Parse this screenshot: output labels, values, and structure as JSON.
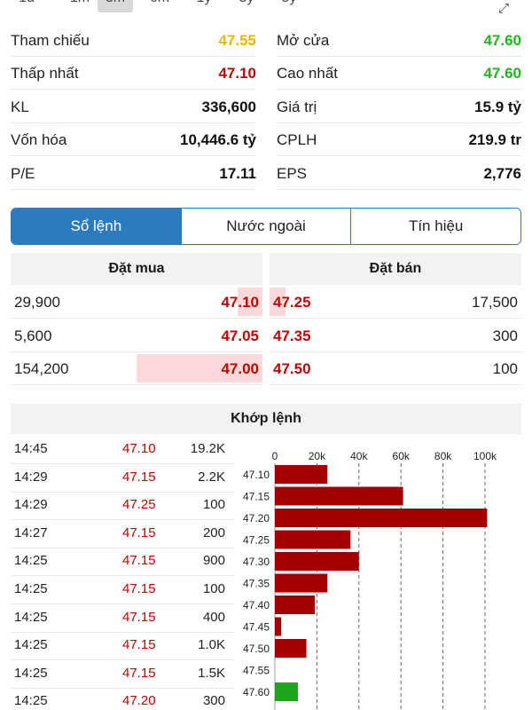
{
  "period_tabs": [
    {
      "label": "1d",
      "active": false
    },
    {
      "label": "1m",
      "active": false
    },
    {
      "label": "3m",
      "active": true
    },
    {
      "label": "6m",
      "active": false
    },
    {
      "label": "1y",
      "active": false
    },
    {
      "label": "3y",
      "active": false
    },
    {
      "label": "5y",
      "active": false
    }
  ],
  "expand_icon": "expand-arrows-icon",
  "stats": {
    "tham_chieu": {
      "label": "Tham chiếu",
      "value": "47.55",
      "color": "#e6b800"
    },
    "mo_cua": {
      "label": "Mở cửa",
      "value": "47.60",
      "color": "#22b322"
    },
    "thap_nhat": {
      "label": "Thấp nhất",
      "value": "47.10",
      "color": "#c40000"
    },
    "cao_nhat": {
      "label": "Cao nhất",
      "value": "47.60",
      "color": "#22b322"
    },
    "kl": {
      "label": "KL",
      "value": "336,600"
    },
    "gia_tri": {
      "label": "Giá trị",
      "value": "15.9 tỷ"
    },
    "von_hoa": {
      "label": "Vốn hóa",
      "value": "10,446.6 tỷ"
    },
    "cplh": {
      "label": "CPLH",
      "value": "219.9 tr"
    },
    "pe": {
      "label": "P/E",
      "value": "17.11"
    },
    "eps": {
      "label": "EPS",
      "value": "2,776"
    }
  },
  "tabs": {
    "so_lenh": "Sổ lệnh",
    "nuoc_ngoai": "Nước ngoài",
    "tin_hieu": "Tín hiệu",
    "active": "so_lenh"
  },
  "order_book": {
    "buy_header": "Đặt mua",
    "sell_header": "Đặt bán",
    "buy": [
      {
        "qty": "29,900",
        "price": "47.10"
      },
      {
        "qty": "5,600",
        "price": "47.05"
      },
      {
        "qty": "154,200",
        "price": "47.00"
      }
    ],
    "sell": [
      {
        "price": "47.25",
        "qty": "17,500"
      },
      {
        "price": "47.35",
        "qty": "300"
      },
      {
        "price": "47.50",
        "qty": "100"
      }
    ]
  },
  "matched": {
    "header": "Khớp lệnh",
    "trades": [
      {
        "time": "14:45",
        "price": "47.10",
        "vol": "19.2K"
      },
      {
        "time": "14:29",
        "price": "47.15",
        "vol": "2.2K"
      },
      {
        "time": "14:29",
        "price": "47.25",
        "vol": "100"
      },
      {
        "time": "14:27",
        "price": "47.15",
        "vol": "200"
      },
      {
        "time": "14:25",
        "price": "47.15",
        "vol": "900"
      },
      {
        "time": "14:25",
        "price": "47.15",
        "vol": "100"
      },
      {
        "time": "14:25",
        "price": "47.15",
        "vol": "400"
      },
      {
        "time": "14:25",
        "price": "47.15",
        "vol": "1.0K"
      },
      {
        "time": "14:25",
        "price": "47.15",
        "vol": "1.5K"
      },
      {
        "time": "14:25",
        "price": "47.20",
        "vol": "300"
      }
    ]
  },
  "chart_data": {
    "type": "bar",
    "orientation": "horizontal",
    "categories": [
      "47.10",
      "47.15",
      "47.20",
      "47.25",
      "47.30",
      "47.35",
      "47.40",
      "47.45",
      "47.50",
      "47.55",
      "47.60"
    ],
    "values": [
      25000,
      61000,
      101000,
      36000,
      40000,
      25000,
      19000,
      3000,
      15000,
      0,
      11000
    ],
    "colors": [
      "#a50000",
      "#a50000",
      "#a50000",
      "#a50000",
      "#a50000",
      "#a50000",
      "#a50000",
      "#a50000",
      "#a50000",
      "#a50000",
      "#1ea51e"
    ],
    "xticks": [
      "0",
      "20k",
      "40k",
      "60k",
      "80k",
      "100k"
    ],
    "xlim": [
      0,
      110000
    ],
    "grid": "vertical dashed",
    "title": "",
    "xlabel": "",
    "ylabel": ""
  }
}
